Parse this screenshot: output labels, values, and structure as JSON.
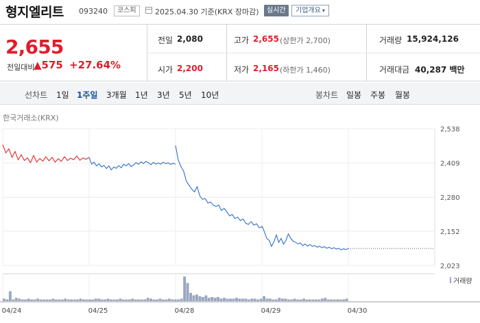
{
  "header": {
    "stock_name": "형지엘리트",
    "stock_code": "093240",
    "market": "코스피",
    "date_text": "2025.04.30  기준(KRX 장마감)",
    "realtime_label": "실시간",
    "company_label": "기업개요"
  },
  "price": {
    "current": "2,655",
    "change_label": "전일대비",
    "change_amount": "▲575",
    "change_percent": "+27.64%"
  },
  "stats": {
    "prev_close_label": "전일",
    "prev_close": "2,080",
    "open_label": "시가",
    "open": "2,200",
    "high_label": "고가",
    "high": "2,655",
    "upper_limit": "(상한가 2,700)",
    "low_label": "저가",
    "low": "2,165",
    "lower_limit": "(하한가 1,460)",
    "volume_label": "거래량",
    "volume": "15,924,126",
    "amount_label": "거래대금",
    "amount": "40,287 백만"
  },
  "period_bar": {
    "line_label": "선차트",
    "line_items": [
      "1일",
      "1주일",
      "3개월",
      "1년",
      "3년",
      "5년",
      "10년"
    ],
    "active_index": 1,
    "candle_label": "봉차트",
    "candle_items": [
      "일봉",
      "주봉",
      "월봉"
    ]
  },
  "chart_source": "한국거래소(KRX)",
  "colors": {
    "up": "#e01d2c",
    "line_prev": "#e02a2a",
    "line_main": "#2d6fc9",
    "volume": "#9aa7c2"
  },
  "chart_data": {
    "type": "line",
    "ylim": [
      2023,
      2538
    ],
    "y_ticks": [
      2538,
      2409,
      2280,
      2152,
      2023
    ],
    "x_ticks": [
      "04/24",
      "04/25",
      "04/28",
      "04/29",
      "04/30"
    ],
    "legend": "거래량",
    "series": [
      {
        "values": [
          2478,
          2447,
          2462,
          2430,
          2452,
          2421,
          2440,
          2418,
          2428,
          2410,
          2437,
          2412,
          2426,
          2416,
          2432,
          2417,
          2430,
          2412,
          2425,
          2415,
          2433,
          2418,
          2427,
          2421,
          2435,
          2419,
          2428,
          2423,
          2430
        ]
      },
      {
        "values": [
          2430,
          2405,
          2412,
          2398,
          2406,
          2394,
          2400,
          2388,
          2398,
          2383,
          2394,
          2389,
          2399,
          2391,
          2404,
          2398,
          2407,
          2395,
          2401,
          2410,
          2404,
          2413,
          2407,
          2415,
          2410,
          2402,
          2411,
          2405,
          2409,
          2404,
          2412,
          2406,
          2410,
          2403,
          2408,
          2404
        ]
      },
      {
        "values": [
          2475,
          2420,
          2395,
          2378,
          2340,
          2325,
          2310,
          2300,
          2320,
          2285,
          2272,
          2275,
          2258,
          2262,
          2250,
          2245,
          2250,
          2230,
          2238,
          2225,
          2210,
          2215,
          2200,
          2205,
          2192,
          2198,
          2182,
          2178,
          2188,
          2175,
          2180,
          2165,
          2168
        ]
      },
      {
        "values": [
          2172,
          2150,
          2125,
          2118,
          2095,
          2112,
          2138,
          2110,
          2125,
          2103,
          2118,
          2142,
          2125,
          2115,
          2110,
          2105,
          2108,
          2098,
          2104,
          2096,
          2102,
          2095,
          2098,
          2092,
          2096,
          2090,
          2094,
          2088,
          2092,
          2086,
          2090,
          2085,
          2088,
          2082,
          2086,
          2083,
          2087
        ]
      }
    ],
    "flat_tail_value": 2087,
    "volume": [
      3,
      2,
      12,
      2,
      4,
      3,
      2,
      2,
      3,
      2,
      2,
      3,
      2,
      2,
      2,
      2,
      3,
      2,
      2,
      2,
      3,
      2,
      2,
      2,
      2,
      3,
      2,
      2,
      2,
      2,
      3,
      3,
      2,
      2,
      3,
      2,
      2,
      2,
      3,
      2,
      2,
      2,
      3,
      2,
      2,
      2,
      2,
      4,
      3,
      2,
      2,
      3,
      2,
      2,
      3,
      2,
      2,
      2,
      3,
      30,
      22,
      10,
      7,
      8,
      6,
      5,
      7,
      4,
      5,
      4,
      5,
      3,
      4,
      3,
      3,
      3,
      4,
      3,
      3,
      3,
      2,
      3,
      3,
      2,
      3,
      6,
      3,
      3,
      2,
      2,
      4,
      3,
      3,
      2,
      2,
      3,
      2,
      2,
      3,
      2,
      2,
      2,
      2,
      2,
      3,
      4,
      2,
      2,
      2,
      2,
      2,
      2,
      3
    ]
  }
}
